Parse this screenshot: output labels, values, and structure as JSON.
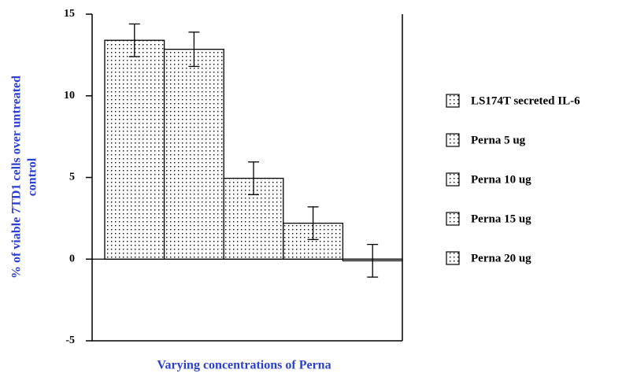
{
  "chart_data": {
    "type": "bar",
    "x_label": "Varying concentrations of Perna",
    "y_label": [
      "% of viable 7TD1 cells over untreated",
      "control"
    ],
    "series": [
      {
        "name": "LS174T secreted IL-6",
        "color": "#000000",
        "values": [
          13.4
        ],
        "errors": [
          1.0
        ]
      },
      {
        "name": "Perna 5 ug",
        "color": "#000000",
        "values": [
          12.85
        ],
        "errors": [
          1.05
        ]
      },
      {
        "name": "Perna 10 ug",
        "color": "#000000",
        "values": [
          4.95
        ],
        "errors": [
          1.0
        ]
      },
      {
        "name": "Perna 15 ug",
        "color": "#000000",
        "values": [
          2.2
        ],
        "errors": [
          1.0
        ]
      },
      {
        "name": "Perna 20 ug",
        "color": "#000000",
        "values": [
          -0.1
        ],
        "errors": [
          1.0
        ]
      }
    ],
    "ylim": [
      -5,
      15
    ],
    "yticks": [
      -5,
      0,
      5,
      10,
      15
    ],
    "legend": "right"
  }
}
